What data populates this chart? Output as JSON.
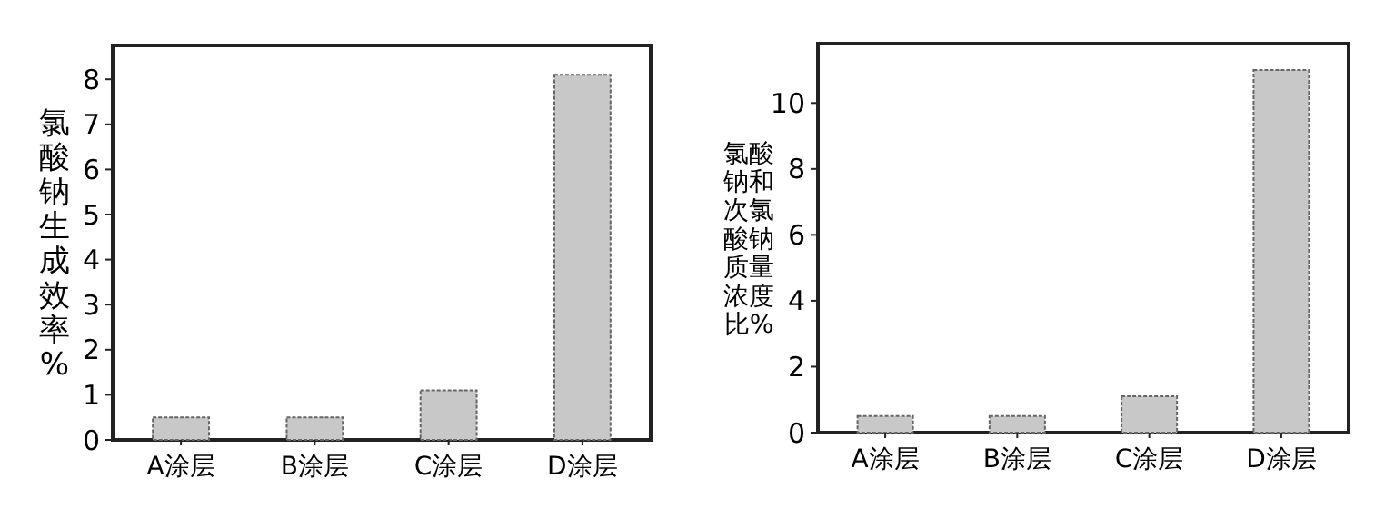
{
  "chart_data": [
    {
      "type": "bar",
      "ylabel": "氯酸钠生成效率%",
      "categories": [
        "A涂层",
        "B涂层",
        "C涂层",
        "D涂层"
      ],
      "values": [
        0.5,
        0.5,
        1.1,
        8.1
      ],
      "color": "#c8c8c8",
      "ylim": [
        0,
        8.75
      ],
      "yticks": [
        0,
        1,
        2,
        3,
        4,
        5,
        6,
        7,
        8
      ]
    },
    {
      "type": "bar",
      "ylabel": "氯酸钠和次氯酸钠质量浓度比%",
      "categories": [
        "A涂层",
        "B涂层",
        "C涂层",
        "D涂层"
      ],
      "values": [
        0.5,
        0.5,
        1.1,
        11.0
      ],
      "color": "#c8c8c8",
      "ylim": [
        0,
        11.8
      ],
      "yticks": [
        0,
        2,
        4,
        6,
        8,
        10
      ]
    }
  ]
}
